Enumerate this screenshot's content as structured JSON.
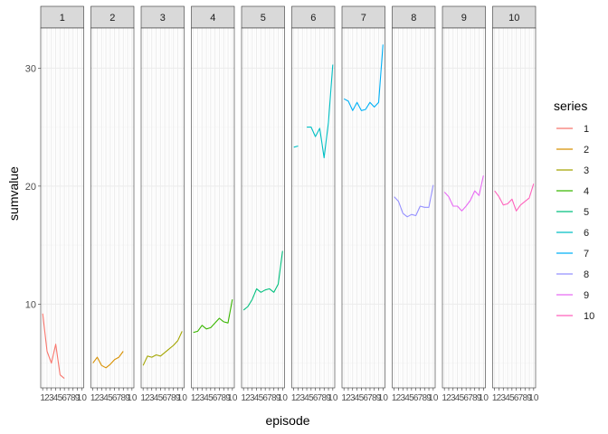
{
  "chart_data": {
    "type": "line",
    "facet_by": "series",
    "xlabel": "episode",
    "ylabel": "sumvalue",
    "x": [
      1,
      2,
      3,
      4,
      5,
      6,
      7,
      8,
      9,
      10
    ],
    "x_tick_labels": [
      "1",
      "2",
      "3",
      "4",
      "5",
      "6",
      "7",
      "8",
      "9",
      "10"
    ],
    "ylim": [
      2.9,
      33.4
    ],
    "y_ticks": [
      10,
      20,
      30
    ],
    "y_tick_labels": [
      "10",
      "20",
      "30"
    ],
    "grid": true,
    "legend": {
      "title": "series",
      "position": "right"
    },
    "series": [
      {
        "name": "1",
        "color": "#F8766D",
        "x": [
          1,
          2,
          3,
          4,
          5,
          6
        ],
        "values": [
          9.2,
          6.0,
          5.0,
          6.6,
          4.0,
          3.7
        ]
      },
      {
        "name": "2",
        "color": "#D89000",
        "x": [
          1,
          2,
          3,
          4,
          5,
          6,
          7,
          8,
          9,
          10
        ],
        "values": [
          5.0,
          5.5,
          4.8,
          4.6,
          4.9,
          5.3,
          5.5,
          6.0,
          null,
          null
        ]
      },
      {
        "name": "3",
        "color": "#A3A500",
        "x": [
          1,
          2,
          3,
          4,
          5,
          6,
          7,
          8,
          9,
          10
        ],
        "values": [
          4.8,
          5.6,
          5.5,
          5.7,
          5.6,
          5.9,
          6.2,
          6.5,
          6.9,
          7.7
        ]
      },
      {
        "name": "4",
        "color": "#39B600",
        "x": [
          1,
          2,
          3,
          4,
          5,
          6,
          7,
          8,
          9,
          10
        ],
        "values": [
          7.6,
          7.7,
          8.2,
          7.9,
          8.0,
          8.4,
          8.8,
          8.5,
          8.4,
          10.4
        ]
      },
      {
        "name": "5",
        "color": "#00BF7D",
        "x": [
          1,
          2,
          3,
          4,
          5,
          6,
          7,
          8,
          9,
          10
        ],
        "values": [
          9.5,
          9.8,
          10.4,
          11.3,
          11.0,
          11.2,
          11.3,
          11.0,
          11.7,
          14.5
        ]
      },
      {
        "name": "6",
        "color": "#00BFC4",
        "x": [
          1,
          2,
          3,
          4,
          5,
          6,
          7,
          8,
          9,
          10
        ],
        "values": [
          23.3,
          23.4,
          null,
          25.0,
          25.0,
          24.2,
          24.9,
          22.4,
          25.4,
          30.3
        ]
      },
      {
        "name": "7",
        "color": "#00B0F6",
        "x": [
          1,
          2,
          3,
          4,
          5,
          6,
          7,
          8,
          9,
          10
        ],
        "values": [
          27.4,
          27.2,
          26.4,
          27.1,
          26.4,
          26.5,
          27.1,
          26.7,
          27.1,
          32.0
        ]
      },
      {
        "name": "8",
        "color": "#9590FF",
        "x": [
          1,
          2,
          3,
          4,
          5,
          6,
          7,
          8,
          9,
          10
        ],
        "values": [
          19.1,
          18.7,
          17.7,
          17.4,
          17.6,
          17.5,
          18.3,
          18.2,
          18.2,
          20.1
        ]
      },
      {
        "name": "9",
        "color": "#E76BF3",
        "x": [
          1,
          2,
          3,
          4,
          5,
          6,
          7,
          8,
          9,
          10
        ],
        "values": [
          19.5,
          19.1,
          18.3,
          18.3,
          17.9,
          18.3,
          18.8,
          19.6,
          19.2,
          20.9
        ]
      },
      {
        "name": "10",
        "color": "#FF62BC",
        "x": [
          1,
          2,
          3,
          4,
          5,
          6,
          7,
          8,
          9,
          10
        ],
        "values": [
          19.6,
          19.1,
          18.4,
          18.5,
          18.9,
          17.9,
          18.4,
          18.7,
          19.0,
          20.2
        ]
      }
    ]
  },
  "colors": {
    "panel_background": "#ffffff",
    "strip_background": "#d9d9d9",
    "strip_border": "#333333",
    "panel_border": "#333333",
    "grid_major": "#ebebeb",
    "grid_minor": "#f5f5f5",
    "axis_text": "#4d4d4d",
    "axis_title": "#000000"
  }
}
